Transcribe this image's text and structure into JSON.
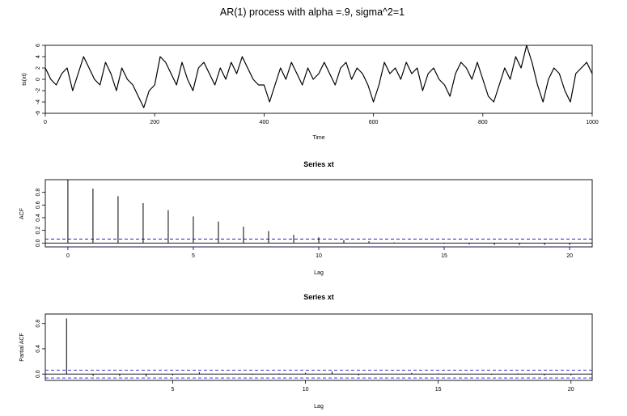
{
  "figure": {
    "title": "AR(1) process with alpha =.9, sigma^2=1"
  },
  "chart_data": [
    {
      "type": "line",
      "title": "",
      "xlabel": "Time",
      "ylabel": "ts(xt)",
      "xlim": [
        0,
        1000
      ],
      "ylim": [
        -6,
        6
      ],
      "xticks": [
        0,
        200,
        400,
        600,
        800,
        1000
      ],
      "yticks": [
        -6,
        -4,
        -2,
        0,
        2,
        4,
        6
      ],
      "grid": false,
      "line_color": "#000000",
      "series": [
        {
          "x": [
            0,
            10,
            20,
            30,
            40,
            50,
            60,
            70,
            80,
            90,
            100,
            110,
            120,
            130,
            140,
            150,
            160,
            170,
            180,
            190,
            200,
            210,
            220,
            230,
            240,
            250,
            260,
            270,
            280,
            290,
            300,
            310,
            320,
            330,
            340,
            350,
            360,
            370,
            380,
            390,
            400,
            410,
            420,
            430,
            440,
            450,
            460,
            470,
            480,
            490,
            500,
            510,
            520,
            530,
            540,
            550,
            560,
            570,
            580,
            590,
            600,
            610,
            620,
            630,
            640,
            650,
            660,
            670,
            680,
            690,
            700,
            710,
            720,
            730,
            740,
            750,
            760,
            770,
            780,
            790,
            800,
            810,
            820,
            830,
            840,
            850,
            860,
            870,
            880,
            890,
            900,
            910,
            920,
            930,
            940,
            950,
            960,
            970,
            980,
            990,
            1000
          ],
          "values": [
            2,
            0,
            -1,
            1,
            2,
            -2,
            1,
            4,
            2,
            0,
            -1,
            3,
            1,
            -2,
            2,
            0,
            -1,
            -3,
            -5,
            -2,
            -1,
            4,
            3,
            1,
            -1,
            3,
            0,
            -2,
            2,
            3,
            1,
            -1,
            2,
            0,
            3,
            1,
            4,
            2,
            0,
            -1,
            -1,
            -4,
            -1,
            2,
            0,
            3,
            1,
            -1,
            2,
            0,
            1,
            3,
            1,
            -1,
            2,
            3,
            0,
            2,
            1,
            -1,
            -4,
            -1,
            3,
            1,
            2,
            0,
            3,
            1,
            2,
            -2,
            1,
            2,
            0,
            -1,
            -3,
            1,
            3,
            2,
            0,
            3,
            0,
            -3,
            -4,
            -1,
            2,
            0,
            4,
            2,
            6,
            3,
            -1,
            -4,
            0,
            2,
            1,
            -2,
            -4,
            1,
            2,
            3,
            1
          ]
        }
      ]
    },
    {
      "type": "bar",
      "title": "Series  xt",
      "xlabel": "Lag",
      "ylabel": "ACF",
      "xlim": [
        -0.9,
        20.9
      ],
      "ylim": [
        -0.06,
        1.0
      ],
      "xticks": [
        0,
        5,
        10,
        15,
        20
      ],
      "yticks": [
        0.0,
        0.2,
        0.4,
        0.6,
        0.8
      ],
      "ytick_labels": [
        "0.0",
        "0.2",
        "0.4",
        "0.6",
        "0.8"
      ],
      "lags": [
        0,
        1,
        2,
        3,
        4,
        5,
        6,
        7,
        8,
        9,
        10,
        11,
        12,
        13,
        14,
        15,
        16,
        17,
        18,
        19,
        20
      ],
      "values": [
        1.0,
        0.86,
        0.74,
        0.63,
        0.52,
        0.42,
        0.34,
        0.26,
        0.19,
        0.13,
        0.09,
        0.05,
        0.03,
        0.01,
        0.0,
        -0.01,
        -0.02,
        -0.03,
        -0.03,
        -0.03,
        -0.03
      ],
      "conf_band": 0.063,
      "conf_color": "#2222cc"
    },
    {
      "type": "bar",
      "title": "Series  xt",
      "xlabel": "Lag",
      "ylabel": "Partial ACF",
      "xlim": [
        0.2,
        20.8
      ],
      "ylim": [
        -0.1,
        0.95
      ],
      "xticks": [
        5,
        10,
        15,
        20
      ],
      "yticks": [
        0.0,
        0.4,
        0.8
      ],
      "ytick_labels": [
        "0.0",
        "0.4",
        "0.8"
      ],
      "lags": [
        1,
        2,
        3,
        4,
        5,
        6,
        7,
        8,
        9,
        10,
        11,
        12,
        13,
        14,
        15,
        16,
        17,
        18,
        19,
        20
      ],
      "values": [
        0.88,
        -0.03,
        -0.03,
        -0.04,
        -0.02,
        0.03,
        0.0,
        -0.01,
        0.01,
        0.02,
        0.04,
        -0.02,
        0.0,
        0.02,
        0.01,
        0.0,
        -0.01,
        0.01,
        -0.02,
        -0.02
      ],
      "conf_band": 0.063,
      "conf_color": "#2222cc"
    }
  ]
}
